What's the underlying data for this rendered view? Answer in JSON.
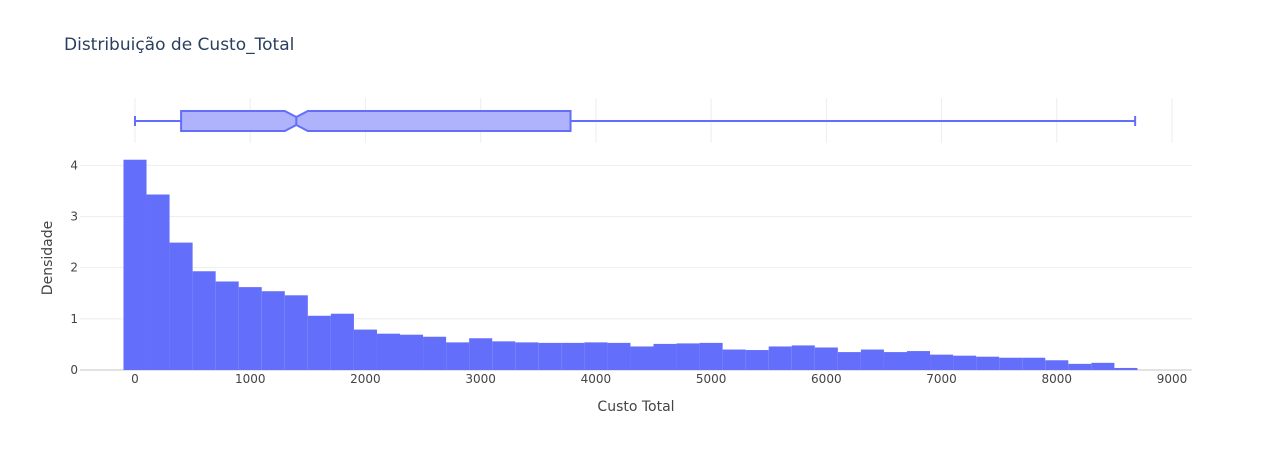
{
  "chart_data": {
    "type": "bar",
    "title": "Distribuição de Custo_Total",
    "xlabel": "Custo Total",
    "ylabel": "Densidade",
    "xlim": [
      -100,
      9000
    ],
    "ylim": [
      0,
      4.3
    ],
    "x_ticks": [
      "0",
      "1000",
      "2000",
      "3000",
      "4000",
      "5000",
      "6000",
      "7000",
      "8000",
      "9000"
    ],
    "y_ticks": [
      "0",
      "1",
      "2",
      "3",
      "4"
    ],
    "grid": true,
    "legend": "none",
    "bin_width": 200,
    "bin_start": -100,
    "values": [
      4.11,
      3.43,
      2.49,
      1.93,
      1.73,
      1.62,
      1.54,
      1.46,
      1.06,
      1.1,
      0.79,
      0.71,
      0.69,
      0.65,
      0.54,
      0.62,
      0.56,
      0.54,
      0.53,
      0.53,
      0.54,
      0.53,
      0.46,
      0.51,
      0.52,
      0.53,
      0.4,
      0.39,
      0.46,
      0.48,
      0.44,
      0.35,
      0.4,
      0.35,
      0.37,
      0.3,
      0.28,
      0.26,
      0.24,
      0.24,
      0.19,
      0.12,
      0.14,
      0.04
    ],
    "boxplot": {
      "min": 0,
      "q1": 400,
      "median": 1400,
      "q3": 3780,
      "max": 8680,
      "notch_low": 1300,
      "notch_high": 1500
    },
    "colors": {
      "bar": "#636efa",
      "box_fill": "#aeb3fc",
      "box_line": "#636efa",
      "grid": "#eeeeee",
      "zero_line": "#d8d8d8"
    }
  }
}
